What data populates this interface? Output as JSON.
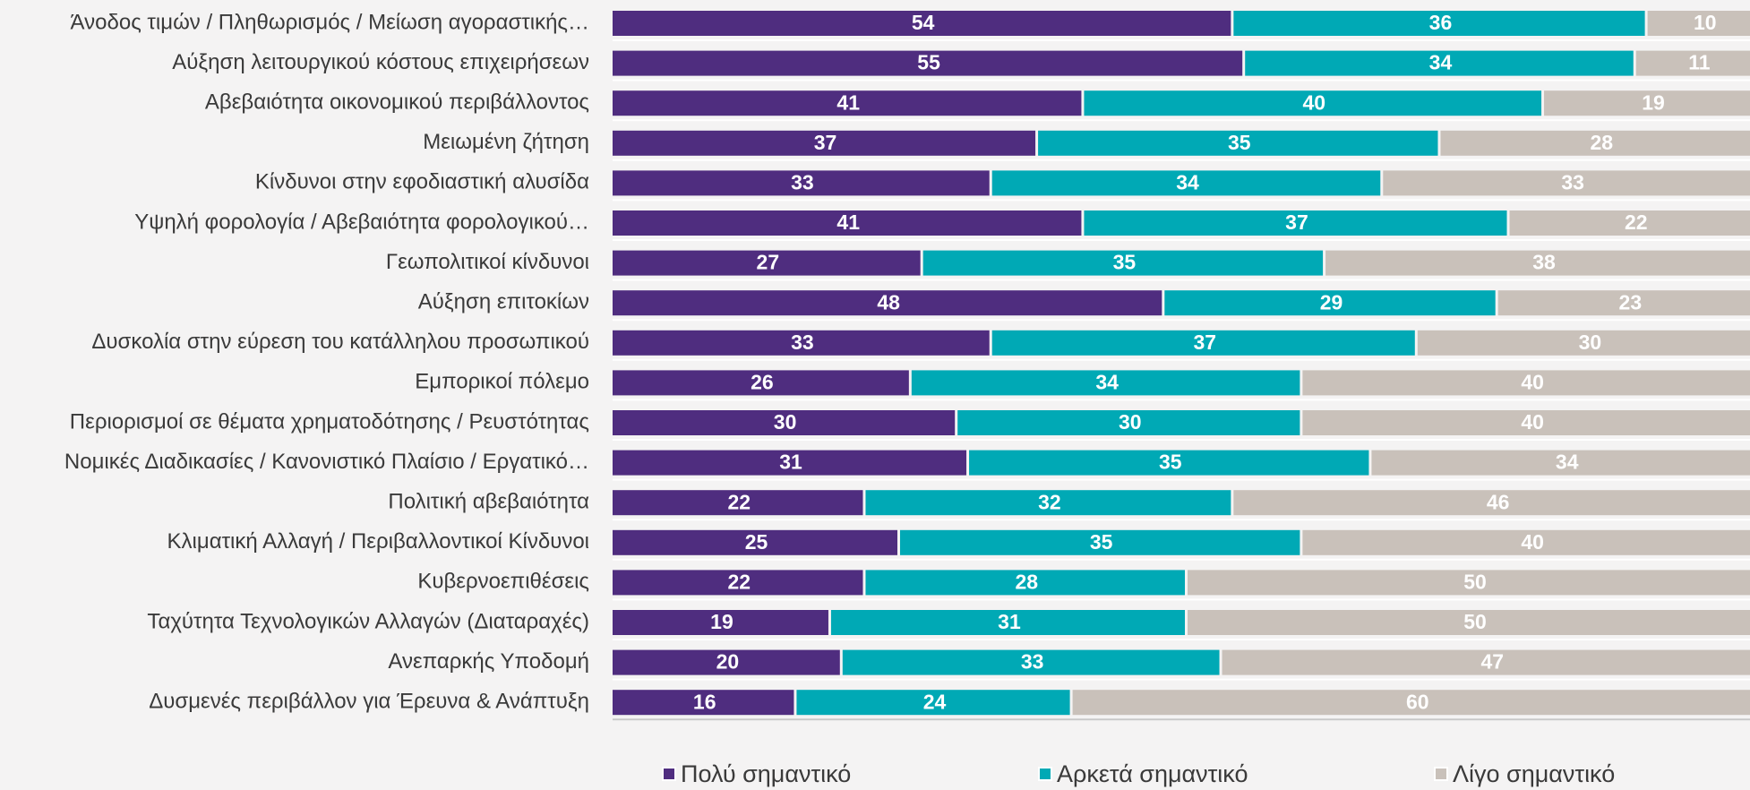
{
  "chart_data": {
    "type": "stacked_bar_horizontal",
    "categories": [
      "Άνοδος τιμών / Πληθωρισμός / Μείωση αγοραστικής…",
      "Αύξηση λειτουργικού κόστους επιχειρήσεων",
      "Αβεβαιότητα οικονομικού περιβάλλοντος",
      "Μειωμένη ζήτηση",
      "Κίνδυνοι στην εφοδιαστική αλυσίδα",
      "Υψηλή φορολογία / Αβεβαιότητα φορολογικού…",
      "Γεωπολιτικοί κίνδυνοι",
      "Αύξηση επιτοκίων",
      "Δυσκολία στην εύρεση του κατάλληλου προσωπικού",
      "Εμπορικοί πόλεμο",
      "Περιορισμοί σε θέματα χρηματοδότησης / Ρευστότητας",
      "Νομικές Διαδικασίες / Κανονιστικό Πλαίσιο / Εργατικό…",
      "Πολιτική αβεβαιότητα",
      "Κλιματική Αλλαγή / Περιβαλλοντικοί Κίνδυνοι",
      "Κυβερνοεπιθέσεις",
      "Ταχύτητα Τεχνολογικών Αλλαγών (Διαταραχές)",
      "Ανεπαρκής Υποδομή",
      "Δυσμενές περιβάλλον για Έρευνα & Ανάπτυξη"
    ],
    "series": [
      {
        "name": "Πολύ σημαντικό",
        "color": "#4f2d7f",
        "values": [
          54,
          55,
          41,
          37,
          33,
          41,
          27,
          48,
          33,
          26,
          30,
          31,
          22,
          25,
          22,
          19,
          20,
          16
        ]
      },
      {
        "name": "Αρκετά σημαντικό",
        "color": "#00a9b5",
        "values": [
          36,
          34,
          40,
          35,
          34,
          37,
          35,
          29,
          37,
          34,
          30,
          35,
          32,
          35,
          28,
          31,
          33,
          24
        ]
      },
      {
        "name": "Λίγο σημαντικό",
        "color": "#c9c1ba",
        "values": [
          10,
          11,
          19,
          28,
          33,
          22,
          38,
          23,
          30,
          40,
          40,
          34,
          46,
          40,
          50,
          50,
          47,
          60
        ]
      }
    ]
  }
}
